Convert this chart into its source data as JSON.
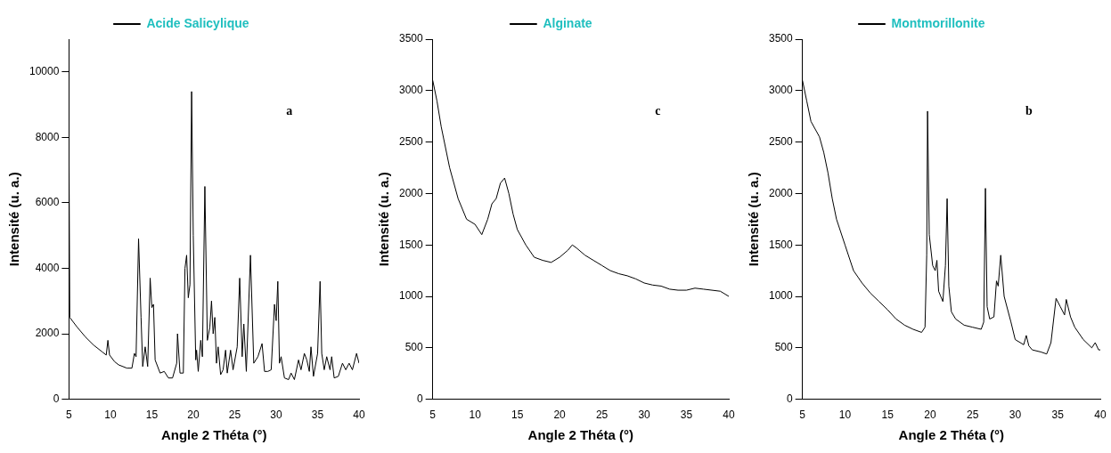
{
  "chart_data": [
    {
      "type": "line",
      "xlabel": "Angle 2 Théta (°)",
      "ylabel": "Intensité (u. a.)",
      "xlim": [
        5,
        40
      ],
      "xticks": [
        5,
        10,
        15,
        20,
        25,
        30,
        35,
        40
      ],
      "ylim": [
        0,
        11000
      ],
      "yticks": [
        0,
        2000,
        4000,
        6000,
        8000,
        10000
      ],
      "grid": false,
      "legend": "top",
      "marker": "none",
      "annotations": [
        "a"
      ],
      "x": [
        5,
        5.1,
        6,
        7,
        8,
        9,
        9.5,
        9.7,
        9.9,
        10.5,
        11,
        12,
        12.6,
        12.9,
        13.1,
        13.4,
        13.7,
        13.9,
        14.2,
        14.5,
        14.8,
        15,
        15.2,
        15.4,
        16,
        16.5,
        17,
        17.5,
        18,
        18.1,
        18.4,
        18.8,
        19,
        19.2,
        19.4,
        19.6,
        19.8,
        20,
        20.3,
        20.4,
        20.6,
        20.9,
        21.1,
        21.4,
        21.7,
        22,
        22.2,
        22.4,
        22.6,
        22.8,
        23,
        23.3,
        23.6,
        23.9,
        24.1,
        24.5,
        24.8,
        25.3,
        25.6,
        25.9,
        26.1,
        26.4,
        26.9,
        27.3,
        27.8,
        28.3,
        28.6,
        29,
        29.4,
        29.8,
        30,
        30.2,
        30.4,
        30.6,
        31,
        31.5,
        31.8,
        32.2,
        32.7,
        33,
        33.4,
        33.7,
        34,
        34.2,
        34.5,
        35,
        35.3,
        35.5,
        35.8,
        36.1,
        36.5,
        36.7,
        37,
        37.5,
        38,
        38.4,
        38.8,
        39.2,
        39.7,
        40
      ],
      "series": [
        {
          "name": "Acide Salicylique",
          "color": "#000000",
          "values": [
            8000,
            2500,
            2200,
            1900,
            1650,
            1450,
            1350,
            1800,
            1350,
            1150,
            1050,
            950,
            950,
            1400,
            1300,
            4900,
            2500,
            1000,
            1600,
            1000,
            3700,
            2800,
            2900,
            1200,
            800,
            850,
            650,
            650,
            1100,
            2000,
            800,
            800,
            4000,
            4400,
            3100,
            3500,
            9400,
            5000,
            1200,
            1500,
            850,
            1800,
            1300,
            6500,
            1800,
            2200,
            3000,
            2000,
            2500,
            1100,
            1600,
            750,
            900,
            1500,
            800,
            1500,
            900,
            1600,
            3700,
            1300,
            2300,
            850,
            4400,
            1100,
            1300,
            1700,
            850,
            850,
            900,
            2900,
            2400,
            3600,
            1100,
            1300,
            650,
            600,
            800,
            600,
            1200,
            900,
            1400,
            1200,
            850,
            1600,
            700,
            1400,
            3600,
            1400,
            900,
            1300,
            900,
            1300,
            650,
            700,
            1100,
            900,
            1100,
            900,
            1400,
            1100
          ]
        }
      ]
    },
    {
      "type": "line",
      "xlabel": "Angle 2 Théta (°)",
      "ylabel": "Intensité (u. a.)",
      "xlim": [
        5,
        40
      ],
      "xticks": [
        5,
        10,
        15,
        20,
        25,
        30,
        35,
        40
      ],
      "ylim": [
        0,
        3500
      ],
      "yticks": [
        0,
        500,
        1000,
        1500,
        2000,
        2500,
        3000,
        3500
      ],
      "grid": false,
      "legend": "top",
      "marker": "none",
      "annotations": [
        "c"
      ],
      "x": [
        5,
        5.5,
        6,
        7,
        8,
        9,
        10,
        10.8,
        11.5,
        12,
        12.5,
        13,
        13.5,
        14,
        14.5,
        15,
        16,
        17,
        18,
        19,
        20,
        21,
        21.5,
        22,
        23,
        24,
        25,
        26,
        27,
        28,
        29,
        30,
        31,
        32,
        33,
        34,
        35,
        36,
        37,
        38,
        39,
        40
      ],
      "series": [
        {
          "name": "Alginate",
          "color": "#000000",
          "values": [
            3100,
            2900,
            2650,
            2250,
            1950,
            1750,
            1700,
            1600,
            1750,
            1900,
            1950,
            2100,
            2150,
            2000,
            1800,
            1650,
            1500,
            1380,
            1350,
            1330,
            1380,
            1450,
            1500,
            1470,
            1400,
            1350,
            1300,
            1250,
            1220,
            1200,
            1170,
            1130,
            1110,
            1100,
            1070,
            1060,
            1060,
            1080,
            1070,
            1060,
            1050,
            1000
          ]
        }
      ]
    },
    {
      "type": "line",
      "xlabel": "Angle 2 Théta (°)",
      "ylabel": "Intensité (u. a.)",
      "xlim": [
        5,
        40
      ],
      "xticks": [
        5,
        10,
        15,
        20,
        25,
        30,
        35,
        40
      ],
      "ylim": [
        0,
        3500
      ],
      "yticks": [
        0,
        500,
        1000,
        1500,
        2000,
        2500,
        3000,
        3500
      ],
      "grid": false,
      "legend": "top",
      "marker": "none",
      "annotations": [
        "b"
      ],
      "x": [
        5,
        5.5,
        6,
        7,
        7.5,
        8,
        8.5,
        9,
        10,
        11,
        12,
        13,
        14,
        15,
        16,
        17,
        18,
        19,
        19.4,
        19.6,
        19.7,
        19.9,
        20.3,
        20.6,
        20.8,
        21,
        21.5,
        21.8,
        22,
        22.2,
        22.5,
        23,
        24,
        25,
        26,
        26.3,
        26.5,
        26.7,
        27,
        27.5,
        27.8,
        28,
        28.3,
        28.7,
        29.5,
        30,
        31,
        31.3,
        31.6,
        32,
        33,
        33.7,
        34.2,
        34.8,
        35.3,
        35.8,
        36,
        36.5,
        37,
        38,
        39,
        39.4,
        39.8,
        40
      ],
      "series": [
        {
          "name": "Montmorillonite",
          "color": "#000000",
          "values": [
            3100,
            2900,
            2700,
            2550,
            2400,
            2200,
            1950,
            1750,
            1500,
            1250,
            1130,
            1030,
            950,
            870,
            780,
            720,
            680,
            650,
            700,
            1400,
            2800,
            1600,
            1300,
            1250,
            1350,
            1050,
            950,
            1300,
            1950,
            1100,
            850,
            780,
            720,
            700,
            680,
            750,
            2050,
            900,
            780,
            800,
            1150,
            1100,
            1400,
            1000,
            750,
            580,
            530,
            620,
            520,
            480,
            460,
            440,
            550,
            980,
            900,
            820,
            970,
            800,
            700,
            580,
            500,
            550,
            480,
            480
          ]
        }
      ]
    }
  ]
}
